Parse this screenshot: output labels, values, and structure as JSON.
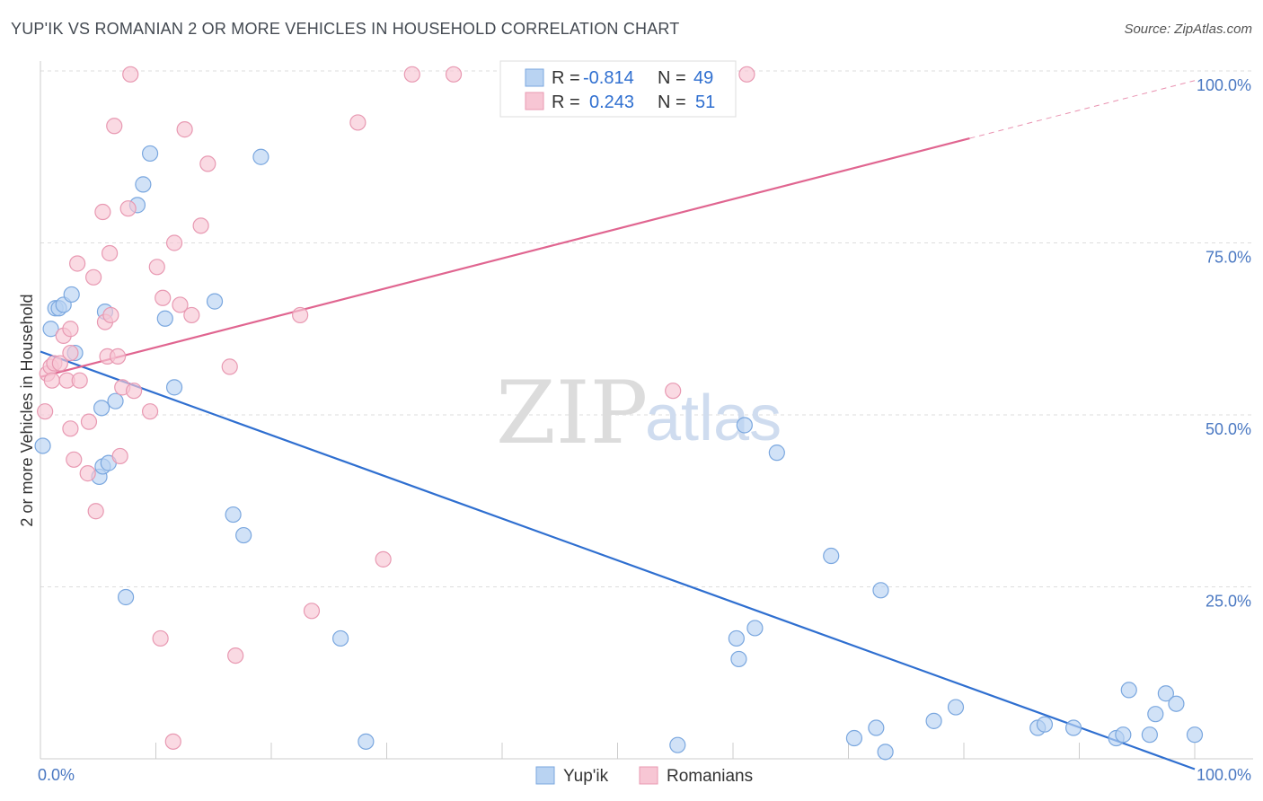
{
  "title": "YUP'IK VS ROMANIAN 2 OR MORE VEHICLES IN HOUSEHOLD CORRELATION CHART",
  "source": "Source: ZipAtlas.com",
  "watermark": {
    "part1": "ZIP",
    "part2": "atlas"
  },
  "colors": {
    "blue_fill": "#b9d3f2",
    "blue_stroke": "#7aa7df",
    "blue_line": "#2f6fd0",
    "pink_fill": "#f7c6d4",
    "pink_stroke": "#e899b2",
    "pink_line": "#e06590",
    "grid": "#dddddd",
    "axis_text": "#4a78c2"
  },
  "legend": {
    "rows": [
      {
        "series": "Yup'ik",
        "r_label": "R =",
        "r_value": "-0.814",
        "n_label": "N =",
        "n_value": "49"
      },
      {
        "series": "Romanians",
        "r_label": "R =",
        "r_value": "0.243",
        "n_label": "N =",
        "n_value": "51"
      }
    ]
  },
  "chart_data": {
    "type": "scatter",
    "title": "YUP'IK VS ROMANIAN 2 OR MORE VEHICLES IN HOUSEHOLD CORRELATION CHART",
    "xlabel": "",
    "ylabel": "2 or more Vehicles in Household",
    "xlim": [
      0,
      100
    ],
    "ylim": [
      0,
      100
    ],
    "x_tick_labels": [
      "0.0%",
      "100.0%"
    ],
    "y_ticks": [
      {
        "value": 100,
        "label": "100.0%"
      },
      {
        "value": 75,
        "label": "75.0%"
      },
      {
        "value": 50,
        "label": "50.0%"
      },
      {
        "value": 25,
        "label": "25.0%"
      }
    ],
    "legend_position": "bottom-center",
    "series": [
      {
        "name": "Yup'ik",
        "color": "blue",
        "points": [
          [
            0.2,
            45.5
          ],
          [
            0.9,
            62.5
          ],
          [
            1.3,
            65.5
          ],
          [
            1.6,
            65.5
          ],
          [
            2.0,
            66
          ],
          [
            2.7,
            67.5
          ],
          [
            3.0,
            59
          ],
          [
            5.1,
            41
          ],
          [
            5.4,
            42.5
          ],
          [
            5.6,
            65
          ],
          [
            5.3,
            51
          ],
          [
            5.9,
            43
          ],
          [
            6.5,
            52
          ],
          [
            7.4,
            23.5
          ],
          [
            8.4,
            80.5
          ],
          [
            8.9,
            83.5
          ],
          [
            9.5,
            88
          ],
          [
            10.8,
            64
          ],
          [
            11.6,
            54
          ],
          [
            15.1,
            66.5
          ],
          [
            16.7,
            35.5
          ],
          [
            17.6,
            32.5
          ],
          [
            19.1,
            87.5
          ],
          [
            26.0,
            17.5
          ],
          [
            28.2,
            2.5
          ],
          [
            55.2,
            2
          ],
          [
            60.3,
            17.5
          ],
          [
            60.5,
            14.5
          ],
          [
            61.0,
            48.5
          ],
          [
            61.9,
            19
          ],
          [
            63.8,
            44.5
          ],
          [
            68.5,
            29.5
          ],
          [
            70.5,
            3
          ],
          [
            72.4,
            4.5
          ],
          [
            72.8,
            24.5
          ],
          [
            73.2,
            1
          ],
          [
            77.4,
            5.5
          ],
          [
            79.3,
            7.5
          ],
          [
            86.4,
            4.5
          ],
          [
            87.0,
            5
          ],
          [
            89.5,
            4.5
          ],
          [
            93.2,
            3
          ],
          [
            93.8,
            3.5
          ],
          [
            94.3,
            10
          ],
          [
            96.1,
            3.5
          ],
          [
            96.6,
            6.5
          ],
          [
            97.5,
            9.5
          ],
          [
            98.4,
            8
          ],
          [
            100.0,
            3.5
          ]
        ]
      },
      {
        "name": "Romanians",
        "color": "pink",
        "points": [
          [
            0.4,
            50.5
          ],
          [
            0.6,
            56
          ],
          [
            0.9,
            57
          ],
          [
            1.0,
            55
          ],
          [
            1.2,
            57.5
          ],
          [
            1.7,
            57.5
          ],
          [
            2.0,
            61.5
          ],
          [
            2.3,
            55
          ],
          [
            2.6,
            59
          ],
          [
            2.6,
            62.5
          ],
          [
            2.6,
            48
          ],
          [
            2.9,
            43.5
          ],
          [
            3.2,
            72
          ],
          [
            3.4,
            55
          ],
          [
            4.1,
            41.5
          ],
          [
            4.2,
            49
          ],
          [
            4.6,
            70
          ],
          [
            4.8,
            36
          ],
          [
            5.4,
            79.5
          ],
          [
            5.6,
            63.5
          ],
          [
            5.8,
            58.5
          ],
          [
            6.0,
            73.5
          ],
          [
            6.1,
            64.5
          ],
          [
            6.4,
            92
          ],
          [
            6.7,
            58.5
          ],
          [
            6.9,
            44
          ],
          [
            7.1,
            54
          ],
          [
            7.6,
            80
          ],
          [
            7.8,
            99.5
          ],
          [
            8.1,
            53.5
          ],
          [
            9.5,
            50.5
          ],
          [
            10.1,
            71.5
          ],
          [
            10.4,
            17.5
          ],
          [
            10.6,
            67
          ],
          [
            11.5,
            2.5
          ],
          [
            11.6,
            75
          ],
          [
            12.1,
            66
          ],
          [
            12.5,
            91.5
          ],
          [
            13.1,
            64.5
          ],
          [
            13.9,
            77.5
          ],
          [
            14.5,
            86.5
          ],
          [
            16.4,
            57
          ],
          [
            16.9,
            15
          ],
          [
            22.5,
            64.5
          ],
          [
            23.5,
            21.5
          ],
          [
            27.5,
            92.5
          ],
          [
            29.7,
            29
          ],
          [
            32.2,
            99.5
          ],
          [
            35.8,
            99.5
          ],
          [
            54.8,
            53.5
          ],
          [
            61.2,
            99.5
          ]
        ]
      }
    ],
    "trend_lines": [
      {
        "series": "Yup'ik",
        "x": [
          0,
          100
        ],
        "y": [
          59.2,
          -1.5
        ],
        "style": "solid"
      },
      {
        "series": "Romanians",
        "x": [
          0,
          80.5
        ],
        "y": [
          55.5,
          90.2
        ],
        "style": "solid"
      },
      {
        "series": "Romanians",
        "x": [
          80.5,
          100
        ],
        "y": [
          90.2,
          98.6
        ],
        "style": "dashed"
      }
    ]
  }
}
